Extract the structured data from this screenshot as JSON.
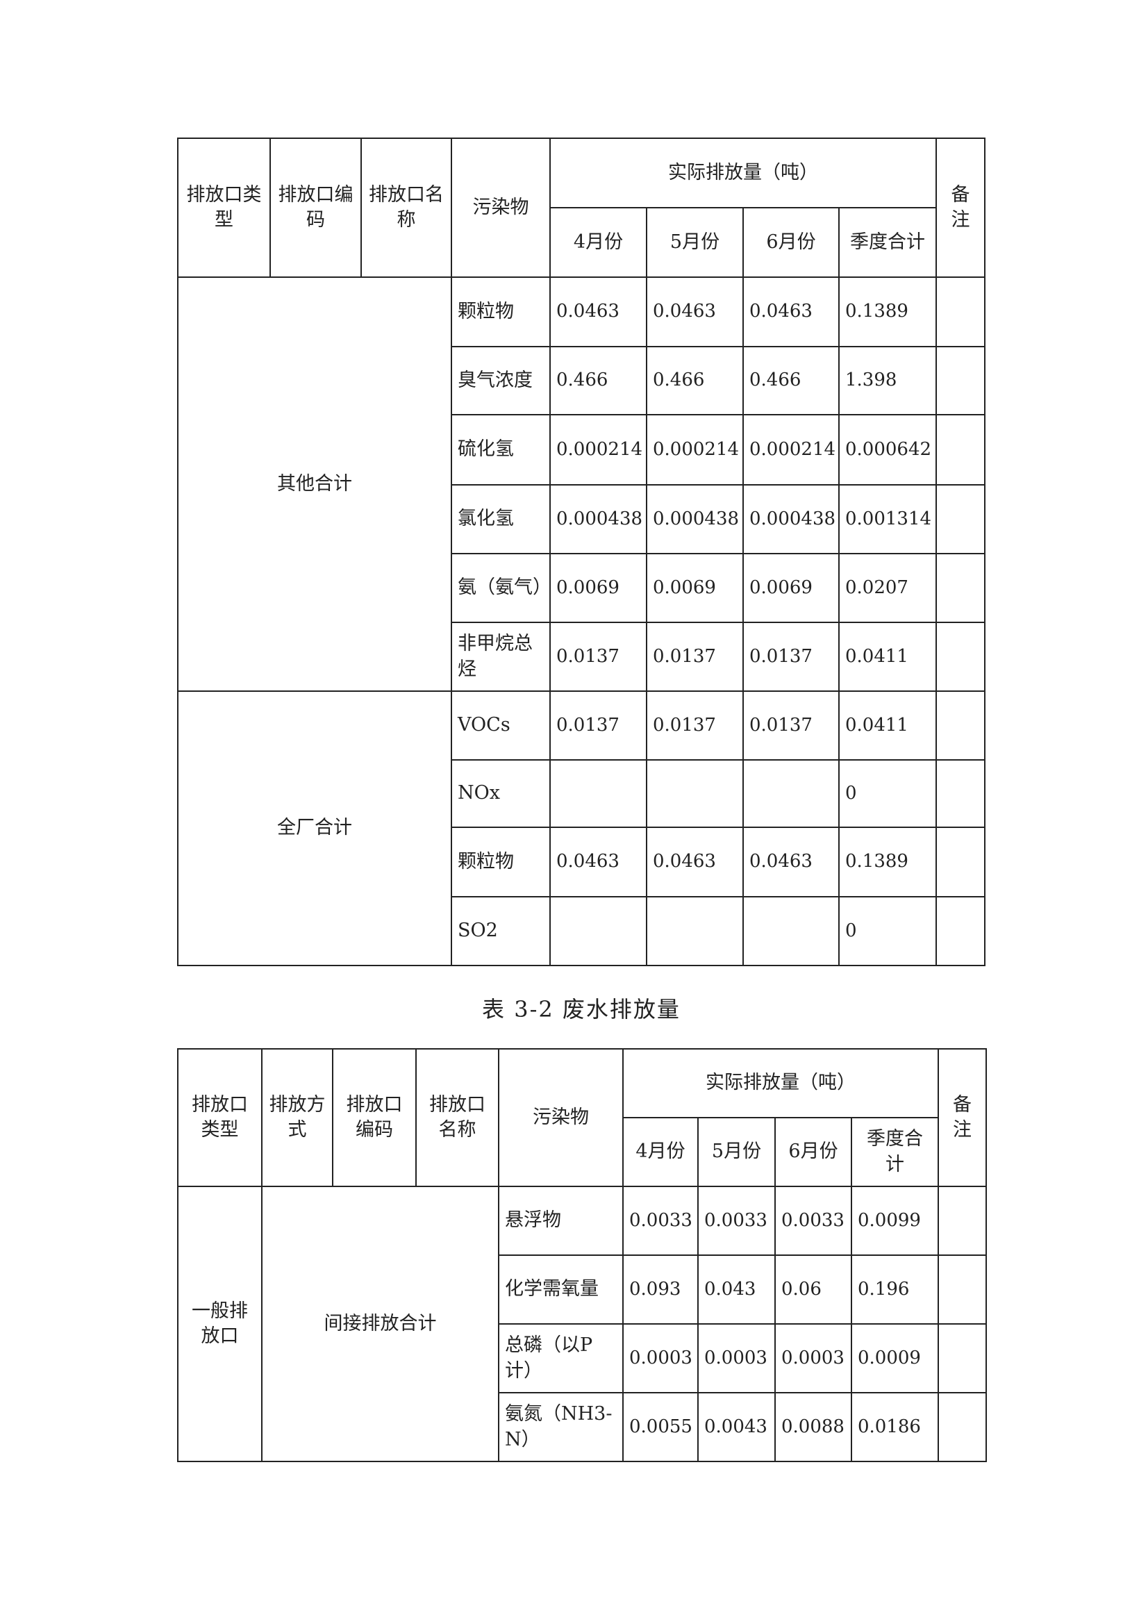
{
  "table1": {
    "headers": {
      "outlet_type": "排放口类型",
      "outlet_code": "排放口编码",
      "outlet_name": "排放口名称",
      "pollutant": "污染物",
      "actual": "实际排放量（吨）",
      "months": [
        "4月份",
        "5月份",
        "6月份",
        "季度合计"
      ],
      "remark": "备注"
    },
    "groups": [
      {
        "label": "其他合计",
        "rows": [
          {
            "pollutant": "颗粒物",
            "values": [
              "0.0463",
              "0.0463",
              "0.0463",
              "0.1389"
            ],
            "remark": ""
          },
          {
            "pollutant": "臭气浓度",
            "values": [
              "0.466",
              "0.466",
              "0.466",
              "1.398"
            ],
            "remark": ""
          },
          {
            "pollutant": "硫化氢",
            "values": [
              "0.000214",
              "0.000214",
              "0.000214",
              "0.000642"
            ],
            "remark": ""
          },
          {
            "pollutant": "氯化氢",
            "values": [
              "0.000438",
              "0.000438",
              "0.000438",
              "0.001314"
            ],
            "remark": ""
          },
          {
            "pollutant": "氨（氨气）",
            "values": [
              "0.0069",
              "0.0069",
              "0.0069",
              "0.0207"
            ],
            "remark": ""
          },
          {
            "pollutant": "非甲烷总烃",
            "values": [
              "0.0137",
              "0.0137",
              "0.0137",
              "0.0411"
            ],
            "remark": ""
          }
        ]
      },
      {
        "label": "全厂合计",
        "rows": [
          {
            "pollutant": "VOCs",
            "values": [
              "0.0137",
              "0.0137",
              "0.0137",
              "0.0411"
            ],
            "remark": ""
          },
          {
            "pollutant": "NOx",
            "values": [
              "",
              "",
              "",
              "0"
            ],
            "remark": ""
          },
          {
            "pollutant": "颗粒物",
            "values": [
              "0.0463",
              "0.0463",
              "0.0463",
              "0.1389"
            ],
            "remark": ""
          },
          {
            "pollutant": "SO2",
            "values": [
              "",
              "",
              "",
              "0"
            ],
            "remark": ""
          }
        ]
      }
    ]
  },
  "table2": {
    "caption": "表 3-2 废水排放量",
    "headers": {
      "outlet_type": "排放口类型",
      "method": "排放方式",
      "outlet_code": "排放口编码",
      "outlet_name": "排放口名称",
      "pollutant": "污染物",
      "actual": "实际排放量（吨）",
      "months": [
        "4月份",
        "5月份",
        "6月份",
        "季度合计"
      ],
      "remark": "备注"
    },
    "outlet_type": "一般排放口",
    "group_label": "间接排放合计",
    "rows": [
      {
        "pollutant": "悬浮物",
        "values": [
          "0.0033",
          "0.0033",
          "0.0033",
          "0.0099"
        ],
        "remark": ""
      },
      {
        "pollutant": "化学需氧量",
        "values": [
          "0.093",
          "0.043",
          "0.06",
          "0.196"
        ],
        "remark": ""
      },
      {
        "pollutant": "总磷（以P计）",
        "values": [
          "0.0003",
          "0.0003",
          "0.0003",
          "0.0009"
        ],
        "remark": ""
      },
      {
        "pollutant": "氨氮（NH3-N）",
        "values": [
          "0.0055",
          "0.0043",
          "0.0088",
          "0.0186"
        ],
        "remark": ""
      }
    ]
  }
}
